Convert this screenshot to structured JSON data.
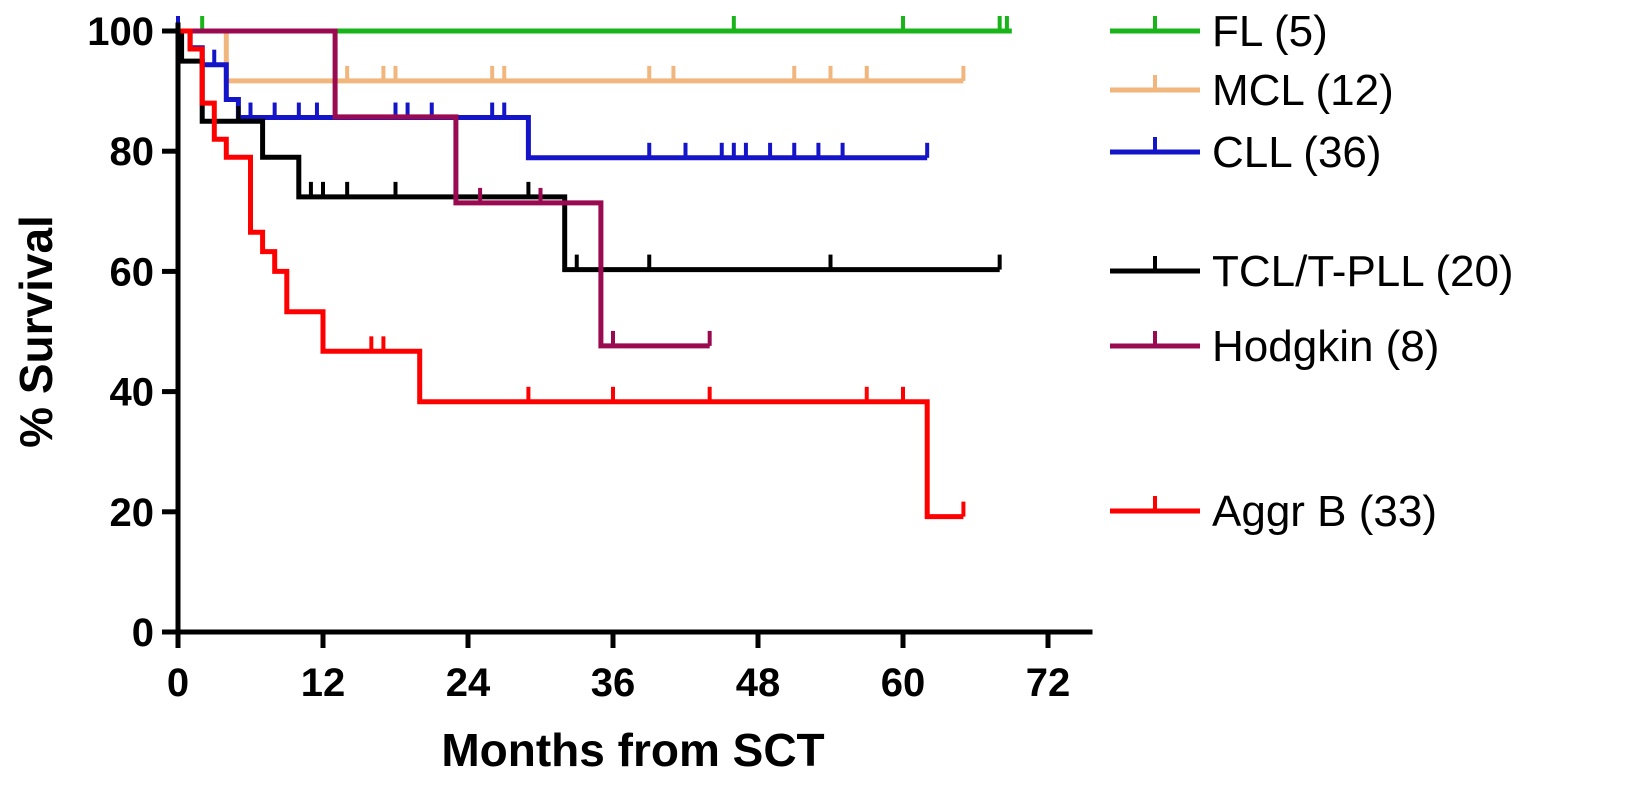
{
  "chart_data": {
    "type": "line",
    "subtype": "kaplan-meier-step",
    "xlabel": "Months from SCT",
    "ylabel": "% Survival",
    "xlim": [
      0,
      72
    ],
    "ylim": [
      0,
      100
    ],
    "x_ticks": [
      0,
      12,
      24,
      36,
      48,
      60,
      72
    ],
    "y_ticks": [
      0,
      20,
      40,
      60,
      80,
      100
    ],
    "x_tick_labels": [
      "0",
      "12",
      "24",
      "36",
      "48",
      "60",
      "72"
    ],
    "y_tick_labels": [
      "0",
      "20",
      "40",
      "60",
      "80",
      "100"
    ],
    "grid": false,
    "legend_position": "right",
    "series": [
      {
        "name": "FL (5)",
        "color": "#19b419",
        "steps": [
          [
            0,
            100
          ],
          [
            69,
            100
          ]
        ],
        "censored": [
          [
            2,
            100
          ],
          [
            46,
            100
          ],
          [
            60,
            100
          ],
          [
            68,
            100
          ],
          [
            68.6,
            100
          ]
        ]
      },
      {
        "name": "MCL (12)",
        "color": "#f0b67e",
        "steps": [
          [
            0,
            100
          ],
          [
            4,
            100
          ],
          [
            4,
            91.7
          ],
          [
            65,
            91.7
          ]
        ],
        "censored": [
          [
            14,
            91.7
          ],
          [
            17,
            91.7
          ],
          [
            18,
            91.7
          ],
          [
            26,
            91.7
          ],
          [
            27,
            91.7
          ],
          [
            39,
            91.7
          ],
          [
            41,
            91.7
          ],
          [
            51,
            91.7
          ],
          [
            54,
            91.7
          ],
          [
            57,
            91.7
          ],
          [
            65,
            91.7
          ]
        ]
      },
      {
        "name": "CLL (36)",
        "color": "#1414c8",
        "steps": [
          [
            0,
            100
          ],
          [
            1,
            100
          ],
          [
            1,
            97.2
          ],
          [
            2,
            97.2
          ],
          [
            2,
            94.4
          ],
          [
            4,
            94.4
          ],
          [
            4,
            88.6
          ],
          [
            5,
            88.6
          ],
          [
            5,
            85.6
          ],
          [
            29,
            85.6
          ],
          [
            29,
            78.9
          ],
          [
            62,
            78.9
          ]
        ],
        "censored": [
          [
            0,
            100
          ],
          [
            3,
            94.4
          ],
          [
            6,
            85.6
          ],
          [
            8,
            85.6
          ],
          [
            10,
            85.6
          ],
          [
            11.5,
            85.6
          ],
          [
            13,
            85.6
          ],
          [
            18,
            85.6
          ],
          [
            19,
            85.6
          ],
          [
            21,
            85.6
          ],
          [
            26,
            85.6
          ],
          [
            27,
            85.6
          ],
          [
            39,
            78.9
          ],
          [
            42,
            78.9
          ],
          [
            45,
            78.9
          ],
          [
            46,
            78.9
          ],
          [
            47,
            78.9
          ],
          [
            49,
            78.9
          ],
          [
            51,
            78.9
          ],
          [
            53,
            78.9
          ],
          [
            55,
            78.9
          ],
          [
            62,
            78.9
          ]
        ]
      },
      {
        "name": "TCL/T-PLL (20)",
        "color": "#000000",
        "steps": [
          [
            0,
            100
          ],
          [
            0.3,
            100
          ],
          [
            0.3,
            95
          ],
          [
            2,
            95
          ],
          [
            2,
            85
          ],
          [
            7,
            85
          ],
          [
            7,
            79
          ],
          [
            10,
            79
          ],
          [
            10,
            72.4
          ],
          [
            32,
            72.4
          ],
          [
            32,
            60.3
          ],
          [
            68,
            60.3
          ]
        ],
        "censored": [
          [
            5,
            85
          ],
          [
            11,
            72.4
          ],
          [
            12,
            72.4
          ],
          [
            14,
            72.4
          ],
          [
            18,
            72.4
          ],
          [
            29,
            72.4
          ],
          [
            33,
            60.3
          ],
          [
            39,
            60.3
          ],
          [
            54,
            60.3
          ],
          [
            68,
            60.3
          ]
        ]
      },
      {
        "name": "Hodgkin (8)",
        "color": "#990a50",
        "steps": [
          [
            0,
            100
          ],
          [
            13,
            100
          ],
          [
            13,
            85.7
          ],
          [
            23,
            85.7
          ],
          [
            23,
            71.4
          ],
          [
            35,
            71.4
          ],
          [
            35,
            47.6
          ],
          [
            44,
            47.6
          ]
        ],
        "censored": [
          [
            25,
            71.4
          ],
          [
            30,
            71.4
          ],
          [
            36,
            47.6
          ],
          [
            44,
            47.6
          ]
        ]
      },
      {
        "name": "Aggr B (33)",
        "color": "#ff0000",
        "steps": [
          [
            0,
            100
          ],
          [
            1,
            100
          ],
          [
            1,
            97
          ],
          [
            2,
            97
          ],
          [
            2,
            88
          ],
          [
            3,
            88
          ],
          [
            3,
            82
          ],
          [
            4,
            82
          ],
          [
            4,
            79
          ],
          [
            6,
            79
          ],
          [
            6,
            66.5
          ],
          [
            7,
            66.5
          ],
          [
            7,
            63.3
          ],
          [
            8,
            63.3
          ],
          [
            8,
            60
          ],
          [
            9,
            60
          ],
          [
            9,
            53.3
          ],
          [
            12,
            53.3
          ],
          [
            12,
            46.7
          ],
          [
            20,
            46.7
          ],
          [
            20,
            38.3
          ],
          [
            62,
            38.3
          ],
          [
            62,
            19.2
          ],
          [
            65,
            19.2
          ]
        ],
        "censored": [
          [
            16,
            46.7
          ],
          [
            17,
            46.7
          ],
          [
            29,
            38.3
          ],
          [
            36,
            38.3
          ],
          [
            44,
            38.3
          ],
          [
            57,
            38.3
          ],
          [
            60,
            38.3
          ],
          [
            65,
            19.2
          ]
        ]
      }
    ]
  }
}
